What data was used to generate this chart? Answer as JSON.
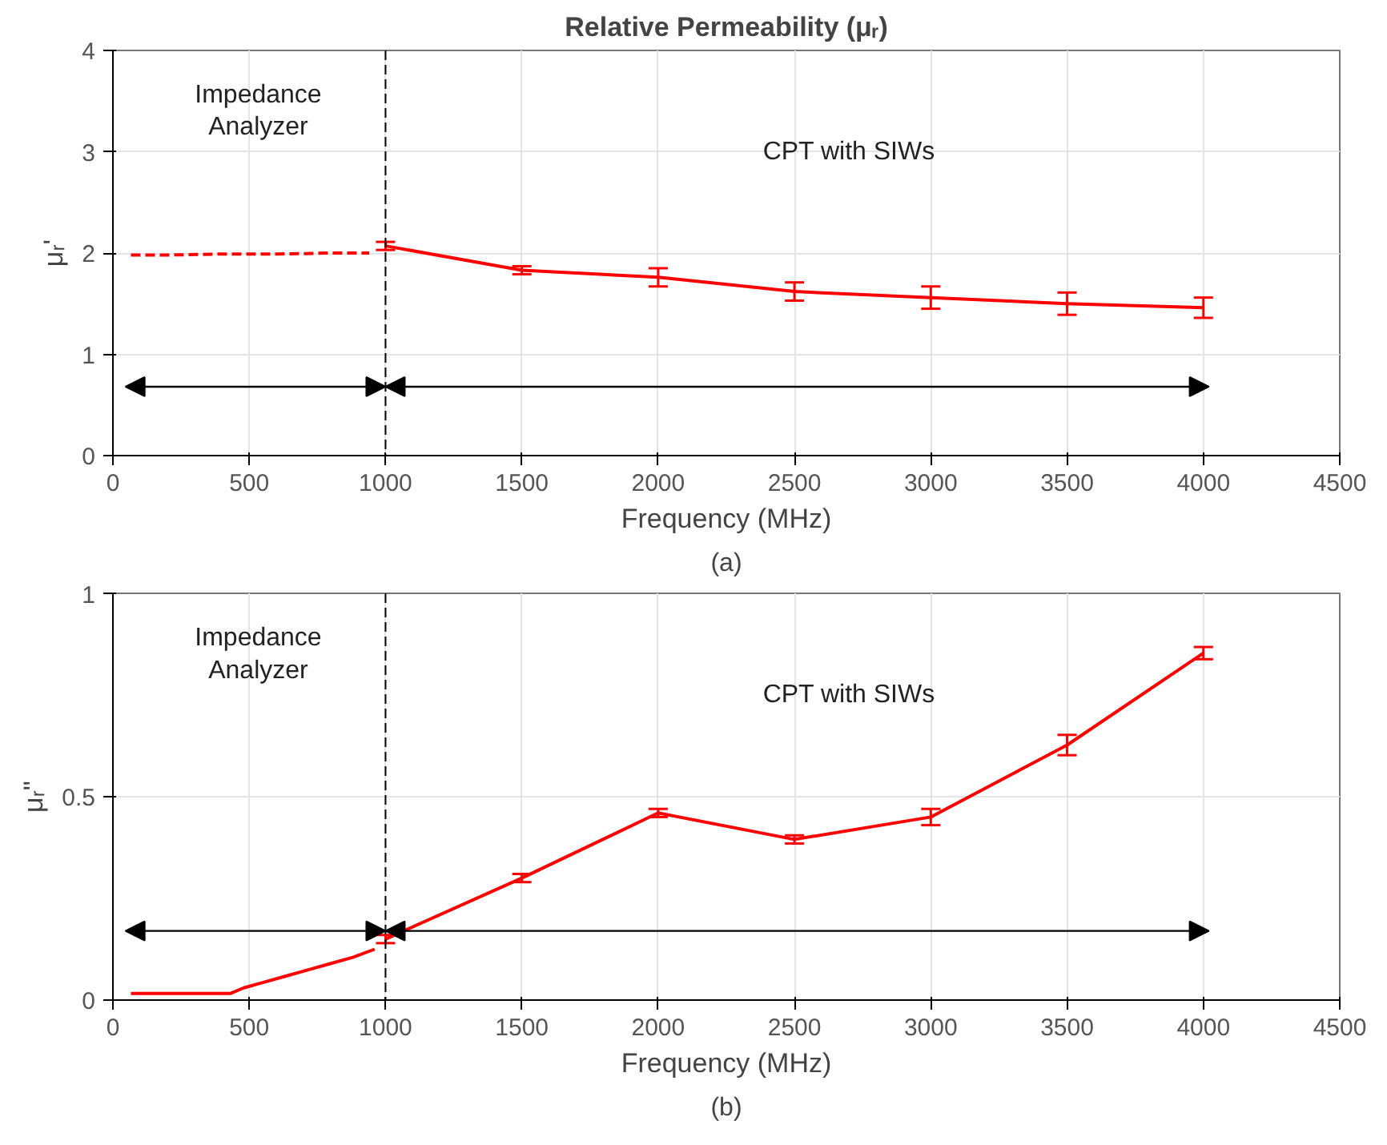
{
  "chart_data": [
    {
      "type": "line",
      "title": "Relative Permeability (μᵣ)",
      "xlabel": "Frequency (MHz)",
      "ylabel": "μᵣ'",
      "series": [
        {
          "color": "#ff0000",
          "line_style": "dashed",
          "x": [
            66,
            200,
            400,
            600,
            800,
            940
          ],
          "values": [
            1.98,
            1.98,
            1.99,
            1.99,
            2.0,
            2.0
          ]
        },
        {
          "color": "#ff0000",
          "x": [
            1000,
            1500,
            2000,
            2500,
            3000,
            3500,
            4000
          ],
          "values": [
            2.07,
            1.83,
            1.76,
            1.62,
            1.56,
            1.5,
            1.46
          ],
          "errors": [
            0.04,
            0.04,
            0.09,
            0.09,
            0.11,
            0.11,
            0.1
          ]
        }
      ],
      "xlim": [
        0,
        4500
      ],
      "xticks": [
        0,
        500,
        1000,
        1500,
        2000,
        2500,
        3000,
        3500,
        4000,
        4500
      ],
      "ylim": [
        0,
        4
      ],
      "yticks": [
        0,
        1,
        2,
        3,
        4
      ],
      "grid": true,
      "ref_lines": [
        {
          "axis": "x",
          "value": 1000,
          "color": "#000000",
          "line_style": "dashed"
        }
      ],
      "annotations": [
        "Impedance Analyzer",
        "CPT with SIWs",
        "(a)"
      ]
    },
    {
      "type": "line",
      "xlabel": "Frequency (MHz)",
      "ylabel": "μᵣ\"",
      "series": [
        {
          "color": "#ff0000",
          "x": [
            66,
            430,
            480,
            560,
            640,
            720,
            800,
            880,
            960
          ],
          "values": [
            0.016,
            0.016,
            0.03,
            0.045,
            0.06,
            0.075,
            0.09,
            0.105,
            0.125
          ]
        },
        {
          "color": "#ff0000",
          "x": [
            1000,
            1500,
            2000,
            2500,
            3000,
            3500,
            4000
          ],
          "values": [
            0.15,
            0.3,
            0.46,
            0.395,
            0.45,
            0.627,
            0.853
          ],
          "errors": [
            0.01,
            0.01,
            0.01,
            0.01,
            0.02,
            0.025,
            0.015
          ]
        }
      ],
      "xlim": [
        0,
        4500
      ],
      "xticks": [
        0,
        500,
        1000,
        1500,
        2000,
        2500,
        3000,
        3500,
        4000,
        4500
      ],
      "ylim": [
        0,
        1
      ],
      "yticks": [
        0,
        0.5,
        1
      ],
      "grid": true,
      "ref_lines": [
        {
          "axis": "x",
          "value": 1000,
          "color": "#000000",
          "line_style": "dashed"
        }
      ],
      "annotations": [
        "Impedance Analyzer",
        "CPT with SIWs",
        "(b)"
      ]
    }
  ]
}
